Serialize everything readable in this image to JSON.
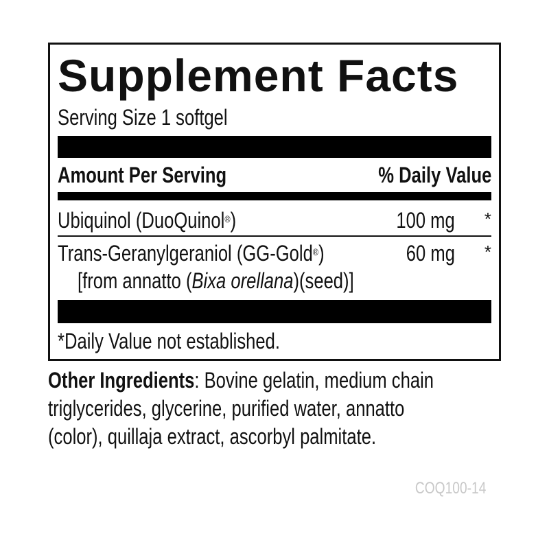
{
  "title": "Supplement Facts",
  "serving_size": "Serving Size 1 softgel",
  "header": {
    "amount": "Amount Per Serving",
    "dv": "% Daily Value"
  },
  "rows": [
    {
      "name": "Ubiquinol (DuoQuinol",
      "reg": "®",
      "name_end": ")",
      "amount": "100 mg",
      "dv": "*"
    },
    {
      "name": "Trans-Geranylgeraniol (GG-Gold",
      "reg": "®",
      "name_end": ")",
      "amount": "60 mg",
      "dv": "*",
      "source_pre": "[from annatto (",
      "source_italic": "Bixa orellana",
      "source_post": ")(seed)]"
    }
  ],
  "footnote": "*Daily Value not established.",
  "other_ingredients": {
    "label": "Other Ingredients",
    "lines": [
      ": Bovine gelatin, medium chain",
      "triglycerides, glycerine, purified water, annatto",
      "(color), quillaja extract, ascorbyl palmitate."
    ]
  },
  "code": "COQ100-14",
  "colors": {
    "text": "#111111",
    "code": "#c8c8c8"
  }
}
